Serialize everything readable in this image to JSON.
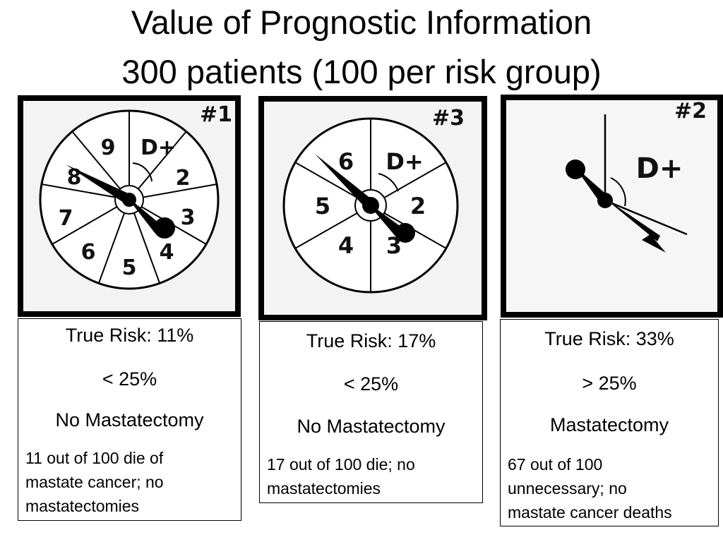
{
  "title": {
    "line1": "Value of Prognostic Information",
    "line2": "300 patients (100 per risk group)"
  },
  "spinners": [
    {
      "id": "#1",
      "slices": [
        "9",
        "D+",
        "2",
        "3",
        "4",
        "5",
        "6",
        "7",
        "8"
      ]
    },
    {
      "id": "#3",
      "slices": [
        "6",
        "D+",
        "2",
        "3",
        "4",
        "5"
      ]
    },
    {
      "id": "#2",
      "slices": [
        "D+"
      ]
    }
  ],
  "panels": [
    {
      "true_risk": "True Risk: 11%",
      "threshold": "< 25%",
      "decision": "No Mastatectomy",
      "outcome_lines": [
        "11 out of 100 die of",
        "mastate cancer; no",
        "mastatectomies"
      ]
    },
    {
      "true_risk": "True Risk: 17%",
      "threshold": "< 25%",
      "decision": "No Mastatectomy",
      "outcome_lines": [
        "17 out of 100 die; no",
        "mastatectomies"
      ]
    },
    {
      "true_risk": "True Risk: 33%",
      "threshold": "> 25%",
      "decision": "Mastatectomy",
      "outcome_lines": [
        "67 out of 100",
        "unnecessary; no",
        "mastate cancer deaths"
      ]
    }
  ]
}
